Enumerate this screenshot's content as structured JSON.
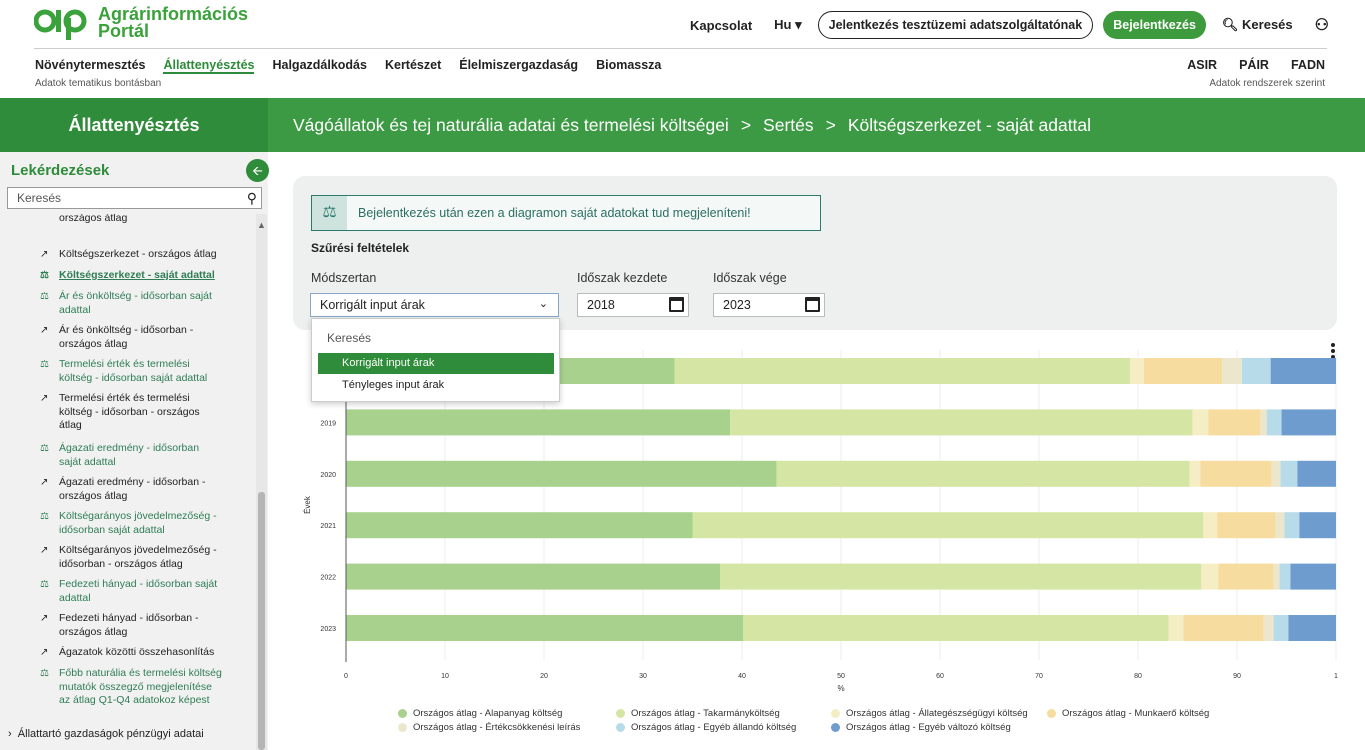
{
  "header": {
    "logo_line1": "Agrárinformációs",
    "logo_line2": "Portál",
    "contact": "Kapcsolat",
    "lang": "Hu",
    "report_btn": "Jelentkezés tesztüzemi adatszolgáltatónak",
    "login_btn": "Bejelentkezés",
    "search": "Keresés",
    "main_nav": [
      "Növénytermesztés",
      "Állattenyésztés",
      "Halgazdálkodás",
      "Kertészet",
      "Élelmiszergazdaság",
      "Biomassza"
    ],
    "active_nav": "Állattenyésztés",
    "main_note": "Adatok tematikus bontásban",
    "sys_nav": [
      "ASIR",
      "PÁIR",
      "FADN"
    ],
    "sys_note": "Adatok rendszerek szerint"
  },
  "band": {
    "section": "Állattenyésztés",
    "crumbs": [
      "Vágóállatok és tej naturália adatai és termelési költségei",
      ">",
      "Sertés",
      ">",
      "Költségszerkezet - saját adattal"
    ]
  },
  "sidebar": {
    "title": "Lekérdezések",
    "search_placeholder": "Keresés",
    "partial_top": "országos átlag",
    "items": [
      {
        "label": "Költségszerkezet - országos átlag",
        "icon": "trend",
        "state": "plain"
      },
      {
        "label": "Költségszerkezet - saját adattal",
        "icon": "scale",
        "state": "current"
      },
      {
        "label": "Ár és önköltség - idősorban saját adattal",
        "icon": "scale",
        "state": "link"
      },
      {
        "label": "Ár és önköltség - idősorban - országos átlag",
        "icon": "trend",
        "state": "plain"
      },
      {
        "label": "Termelési érték és termelési költség - idősorban saját adattal",
        "icon": "scale",
        "state": "link"
      },
      {
        "label": "Termelési érték és termelési költség - idősorban - országos átlag",
        "icon": "trend",
        "state": "plain"
      },
      {
        "label": "Ágazati eredmény - idősorban saját adattal",
        "icon": "scale",
        "state": "link"
      },
      {
        "label": "Ágazati eredmény - idősorban - országos átlag",
        "icon": "trend",
        "state": "plain"
      },
      {
        "label": "Költségarányos jövedelmezőség - idősorban saját adattal",
        "icon": "scale",
        "state": "link"
      },
      {
        "label": "Költségarányos jövedelmezőség - idősorban - országos átlag",
        "icon": "trend",
        "state": "plain"
      },
      {
        "label": "Fedezeti hányad - idősorban saját adattal",
        "icon": "scale",
        "state": "link"
      },
      {
        "label": "Fedezeti hányad - idősorban - országos átlag",
        "icon": "trend",
        "state": "plain"
      },
      {
        "label": "Ágazatok közötti összehasonlítás",
        "icon": "trend",
        "state": "plain"
      },
      {
        "label": "Főbb naturália és termelési költség mutatók összegző megjelenítése az átlag Q1-Q4 adatokoz képest",
        "icon": "scale",
        "state": "link"
      }
    ],
    "bottom_item": "Állattartó gazdaságok pénzügyi adatai"
  },
  "filters": {
    "info": "Bejelentkezés után ezen a diagramon saját adatokat tud megjeleníteni!",
    "title": "Szűrési feltételek",
    "method_label": "Módszertan",
    "method_value": "Korrigált input árak",
    "start_label": "Időszak kezdete",
    "start_value": "2018",
    "end_label": "Időszak vége",
    "end_value": "2023",
    "dropdown_search": "Keresés",
    "dropdown_options": [
      "Korrigált input árak",
      "Tényleges input árak"
    ],
    "dropdown_selected": "Korrigált input árak"
  },
  "chart_data": {
    "type": "bar",
    "orientation": "horizontal",
    "stacked": true,
    "categories": [
      "2018",
      "2019",
      "2020",
      "2021",
      "2022",
      "2023"
    ],
    "ylabel": "Évek",
    "xlabel": "%",
    "xlim": [
      0,
      100
    ],
    "xticks": [
      "0",
      "10",
      "20",
      "30",
      "40",
      "50",
      "60",
      "70",
      "80",
      "90",
      "1"
    ],
    "series": [
      {
        "name": "Országos átlag - Alapanyag költség",
        "color": "#a9d18e",
        "values": [
          33.2,
          38.8,
          43.5,
          35.0,
          37.8,
          40.1
        ]
      },
      {
        "name": "Országos átlag - Takarmányköltség",
        "color": "#d4e5a4",
        "values": [
          46.0,
          46.7,
          41.7,
          51.6,
          48.6,
          43.0
        ]
      },
      {
        "name": "Országos átlag - Állategészségügyi költség",
        "color": "#f5eec4",
        "values": [
          1.4,
          1.6,
          1.1,
          1.4,
          1.7,
          1.5
        ]
      },
      {
        "name": "Országos átlag - Munkaerő költség",
        "color": "#f7dc9f",
        "values": [
          7.9,
          5.3,
          7.2,
          5.9,
          5.6,
          8.1
        ]
      },
      {
        "name": "Országos átlag - Értékcsökkenési leírás",
        "color": "#ece6cc",
        "values": [
          2.0,
          0.6,
          0.9,
          0.9,
          0.6,
          1.0
        ]
      },
      {
        "name": "Országos átlag - Egyéb állandó költség",
        "color": "#b7dbe8",
        "values": [
          2.9,
          1.5,
          1.7,
          1.5,
          1.1,
          1.5
        ]
      },
      {
        "name": "Országos átlag - Egyéb változó költség",
        "color": "#6e9ccf",
        "values": [
          6.6,
          5.5,
          3.9,
          3.7,
          4.6,
          4.8
        ]
      }
    ]
  }
}
